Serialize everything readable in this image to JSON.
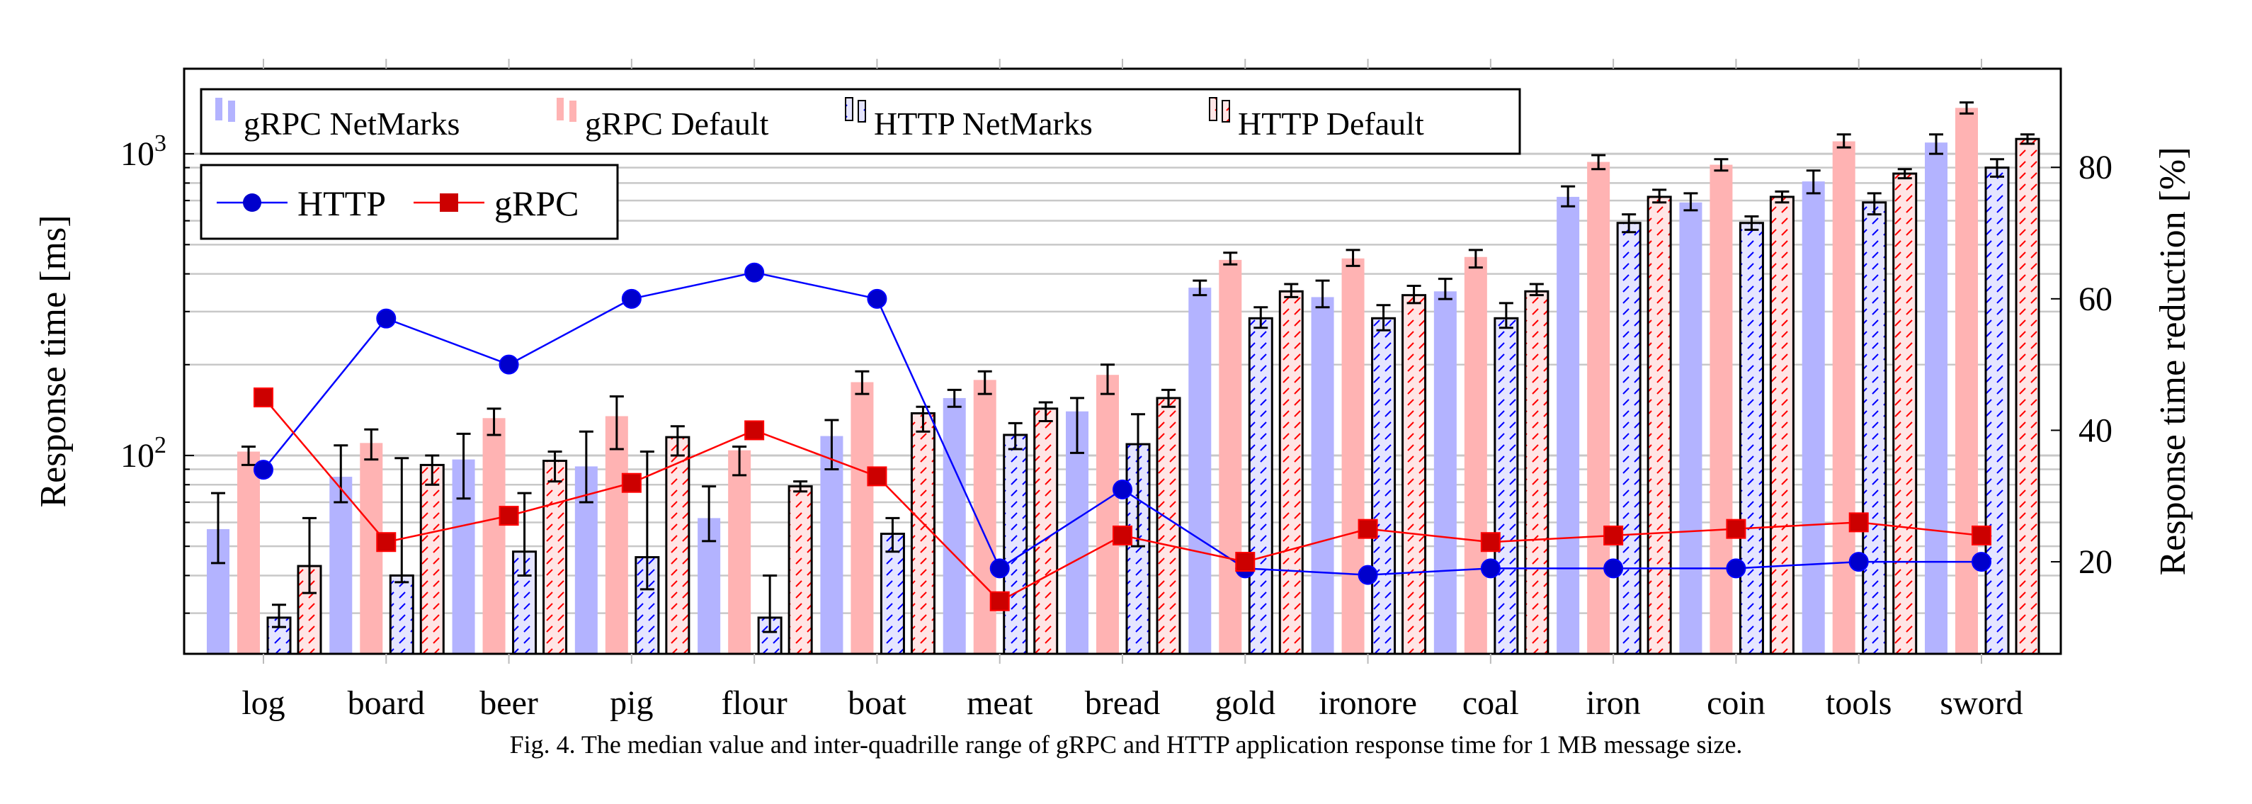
{
  "chart_data": {
    "type": "bar",
    "title": "",
    "caption": "Fig. 4.  The median value and inter-quadrille range of gRPC and HTTP application response time for 1 MB message size.",
    "xlabel": "",
    "ylabel": "Response time [ms]",
    "ylabel_right": "Response time reduction [%]",
    "yscale": "log",
    "ylim": [
      22,
      1915
    ],
    "ylim_right": [
      6,
      95
    ],
    "yticks": [
      {
        "value": 100,
        "label": "10",
        "exp": "2"
      },
      {
        "value": 1000,
        "label": "10",
        "exp": "3"
      }
    ],
    "yticks_right": [
      20,
      40,
      60,
      80
    ],
    "grid": true,
    "categories": [
      "log",
      "board",
      "beer",
      "pig",
      "flour",
      "boat",
      "meat",
      "bread",
      "gold",
      "ironore",
      "coal",
      "iron",
      "coin",
      "tools",
      "sword"
    ],
    "series": [
      {
        "name": "gRPC NetMarks",
        "color": "#b3b3ff",
        "hatch": false,
        "values": [
          57,
          85,
          97,
          92,
          62,
          116,
          155,
          140,
          360,
          335,
          350,
          720,
          690,
          810,
          1090
        ],
        "err_low": [
          44,
          70,
          72,
          70,
          52,
          90,
          145,
          102,
          340,
          310,
          330,
          670,
          650,
          740,
          1000
        ],
        "err_high": [
          75,
          108,
          118,
          120,
          79,
          131,
          165,
          155,
          380,
          380,
          385,
          780,
          740,
          880,
          1160
        ]
      },
      {
        "name": "gRPC Default",
        "color": "#ffb3b3",
        "hatch": false,
        "values": [
          103,
          110,
          133,
          135,
          104,
          175,
          178,
          185,
          445,
          450,
          455,
          940,
          920,
          1100,
          1420
        ],
        "err_low": [
          93,
          97,
          117,
          105,
          86,
          160,
          160,
          160,
          430,
          425,
          420,
          890,
          880,
          1050,
          1360
        ],
        "err_high": [
          107,
          122,
          143,
          157,
          107,
          190,
          190,
          200,
          470,
          480,
          480,
          990,
          960,
          1160,
          1480
        ]
      },
      {
        "name": "HTTP NetMarks",
        "color": "#0000ff",
        "hatch": true,
        "fill": "#e5e5ff",
        "values": [
          29,
          40,
          48,
          46,
          29,
          55,
          117,
          109,
          285,
          285,
          285,
          590,
          590,
          690,
          900
        ],
        "err_low": [
          27,
          38,
          40,
          36,
          26,
          48,
          105,
          50,
          265,
          260,
          265,
          550,
          560,
          630,
          840
        ],
        "err_high": [
          32,
          98,
          75,
          103,
          40,
          62,
          128,
          137,
          310,
          315,
          320,
          630,
          620,
          740,
          960
        ]
      },
      {
        "name": "HTTP Default",
        "color": "#ff0000",
        "hatch": true,
        "fill": "#ffe5e5",
        "values": [
          43,
          93,
          96,
          115,
          79,
          138,
          143,
          155,
          350,
          340,
          350,
          720,
          720,
          860,
          1120
        ],
        "err_low": [
          35,
          80,
          82,
          100,
          76,
          120,
          130,
          145,
          335,
          320,
          340,
          690,
          690,
          830,
          1080
        ],
        "err_high": [
          62,
          100,
          103,
          125,
          82,
          145,
          150,
          165,
          370,
          365,
          370,
          760,
          750,
          890,
          1160
        ]
      }
    ],
    "line_series": [
      {
        "name": "HTTP",
        "color": "#0000ff",
        "marker": "circle",
        "axis": "right",
        "values": [
          34,
          57,
          50,
          60,
          64,
          60,
          19,
          31,
          19,
          18,
          19,
          19,
          19,
          20,
          20
        ]
      },
      {
        "name": "gRPC",
        "color": "#ff0000",
        "marker": "square",
        "axis": "right",
        "values": [
          45,
          23,
          27,
          32,
          40,
          33,
          14,
          24,
          20,
          25,
          23,
          24,
          25,
          26,
          24
        ]
      }
    ],
    "legend_placement": "top-left"
  }
}
